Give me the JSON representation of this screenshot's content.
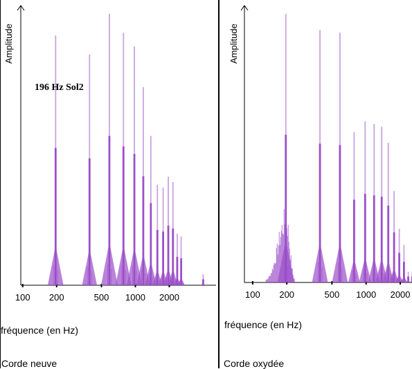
{
  "chart_data": [
    {
      "type": "bar",
      "ylabel": "Amplitude",
      "xlabel": "fréquence (en Hz)",
      "caption": "Corde neuve",
      "annotation": "196 Hz  Sol2",
      "x_scale": "log",
      "xlim": [
        80,
        5200
      ],
      "ylim": [
        0,
        100
      ],
      "tick_labels": [
        "100",
        "200",
        "500",
        "1000",
        "2000"
      ],
      "tick_values": [
        100,
        200,
        500,
        1000,
        2000
      ],
      "color": "#9b4fc9",
      "peaks": [
        {
          "f": 196,
          "a": 92
        },
        {
          "f": 392,
          "a": 85
        },
        {
          "f": 588,
          "a": 100
        },
        {
          "f": 784,
          "a": 93
        },
        {
          "f": 980,
          "a": 88
        },
        {
          "f": 1176,
          "a": 73
        },
        {
          "f": 1372,
          "a": 55
        },
        {
          "f": 1568,
          "a": 37
        },
        {
          "f": 1764,
          "a": 36
        },
        {
          "f": 1960,
          "a": 40
        },
        {
          "f": 2156,
          "a": 38
        },
        {
          "f": 2352,
          "a": 19
        },
        {
          "f": 2548,
          "a": 18
        },
        {
          "f": 4000,
          "a": 4
        }
      ]
    },
    {
      "type": "bar",
      "ylabel": "Amplitude",
      "xlabel": "fréquence (en Hz)",
      "caption": "Corde oxydée",
      "x_scale": "log",
      "xlim": [
        80,
        2800
      ],
      "ylim": [
        0,
        100
      ],
      "tick_labels": [
        "100",
        "200",
        "500",
        "1000",
        "2000"
      ],
      "tick_values": [
        100,
        200,
        500,
        1000,
        2000
      ],
      "color": "#9b4fc9",
      "peaks": [
        {
          "f": 196,
          "a": 100
        },
        {
          "f": 392,
          "a": 94
        },
        {
          "f": 588,
          "a": 93
        },
        {
          "f": 784,
          "a": 56
        },
        {
          "f": 980,
          "a": 60
        },
        {
          "f": 1176,
          "a": 59
        },
        {
          "f": 1372,
          "a": 58
        },
        {
          "f": 1568,
          "a": 52
        },
        {
          "f": 1764,
          "a": 34
        },
        {
          "f": 1960,
          "a": 20
        },
        {
          "f": 2156,
          "a": 14
        },
        {
          "f": 2352,
          "a": 4
        },
        {
          "f": 2548,
          "a": 4
        }
      ]
    }
  ]
}
